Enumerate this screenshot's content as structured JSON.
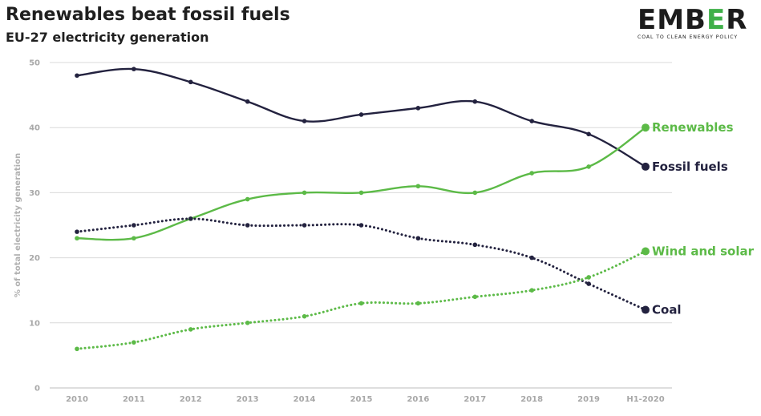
{
  "header": {
    "title": "Renewables beat fossil fuels",
    "subtitle": "EU-27 electricity generation"
  },
  "logo": {
    "word_main": "EMB",
    "word_accent": "E",
    "word_end": "R",
    "tagline": "COAL TO CLEAN ENERGY POLICY"
  },
  "chart_data": {
    "type": "line",
    "title": "Renewables beat fossil fuels",
    "subtitle": "EU-27 electricity generation",
    "xlabel": "",
    "ylabel": "% of total electricity generation",
    "ylim": [
      0,
      50
    ],
    "yticks": [
      0,
      10,
      20,
      30,
      40,
      50
    ],
    "grid": true,
    "legend": "end-of-line labels",
    "categories": [
      "2010",
      "2011",
      "2012",
      "2013",
      "2014",
      "2015",
      "2016",
      "2017",
      "2018",
      "2019",
      "H1-2020"
    ],
    "series": [
      {
        "name": "Fossil fuels",
        "color": "#23223f",
        "style": "solid",
        "values": [
          48,
          49,
          47,
          44,
          41,
          42,
          43,
          44,
          41,
          39,
          34
        ]
      },
      {
        "name": "Renewables",
        "color": "#5cba47",
        "style": "solid",
        "values": [
          23,
          23,
          26,
          29,
          30,
          30,
          31,
          30,
          33,
          34,
          40
        ]
      },
      {
        "name": "Coal",
        "color": "#23223f",
        "style": "dotted",
        "values": [
          24,
          25,
          26,
          25,
          25,
          25,
          23,
          22,
          20,
          16,
          12
        ]
      },
      {
        "name": "Wind and solar",
        "color": "#5cba47",
        "style": "dotted",
        "values": [
          6,
          7,
          9,
          10,
          11,
          13,
          13,
          14,
          15,
          17,
          21
        ]
      }
    ]
  }
}
